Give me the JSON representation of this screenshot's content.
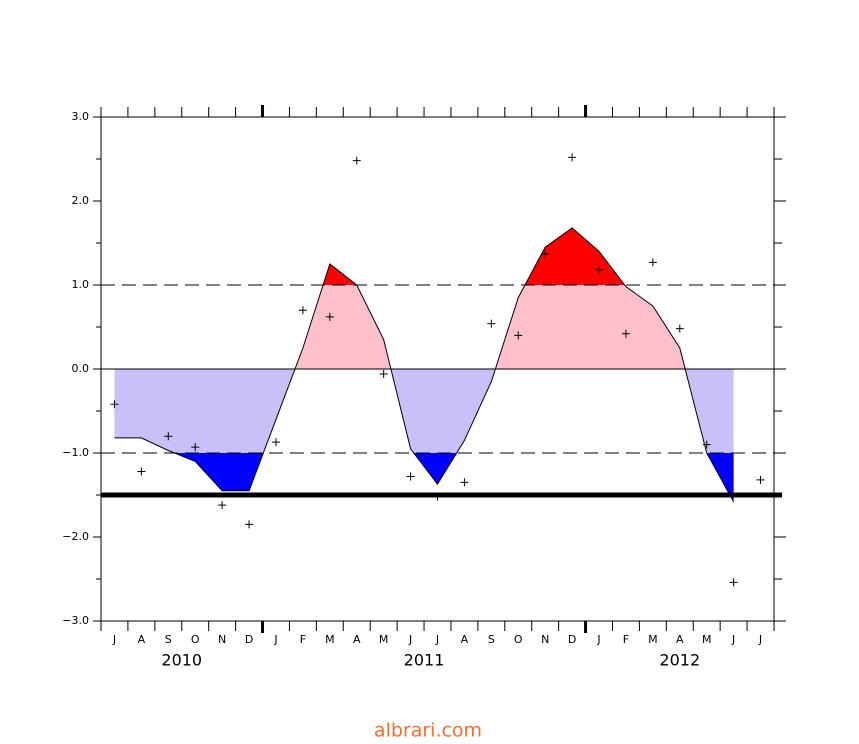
{
  "chart_data": {
    "type": "line",
    "categories": [
      "J",
      "A",
      "S",
      "O",
      "N",
      "D",
      "J",
      "F",
      "M",
      "A",
      "M",
      "J",
      "J",
      "A",
      "S",
      "O",
      "N",
      "D",
      "J",
      "F",
      "M",
      "A",
      "M",
      "J",
      "J"
    ],
    "years": [
      "2010",
      "2011",
      "2012"
    ],
    "series": [
      {
        "kind": "area-line",
        "color": "#000000",
        "values": [
          -0.82,
          -0.82,
          -0.97,
          -1.1,
          -1.45,
          -1.45,
          -0.6,
          0.25,
          1.25,
          1.0,
          0.35,
          -0.95,
          -1.37,
          -0.85,
          -0.15,
          0.85,
          1.45,
          1.68,
          1.4,
          0.98,
          0.75,
          0.25,
          -1.0,
          -1.58,
          null
        ]
      },
      {
        "kind": "cross",
        "color": "#000000",
        "values": [
          -0.42,
          -1.22,
          -0.8,
          -0.93,
          -1.62,
          -1.85,
          -0.87,
          0.7,
          0.62,
          2.48,
          -0.06,
          -1.28,
          -1.52,
          -1.35,
          0.54,
          0.4,
          1.37,
          2.52,
          1.18,
          0.42,
          1.27,
          0.48,
          -0.9,
          -2.54,
          -1.32
        ]
      }
    ],
    "fill_colors": {
      "strong_positive": "#ff0000",
      "positive": "#ffc0cb",
      "negative": "#c8c0f8",
      "strong_negative": "#0000ff"
    },
    "thresholds": [
      1,
      -1
    ],
    "reference_lines": [
      {
        "value": 1,
        "style": "dashed"
      },
      {
        "value": 0,
        "style": "solid"
      },
      {
        "value": -1,
        "style": "dashed"
      },
      {
        "value": -1.5,
        "style": "thick"
      }
    ],
    "ylim": [
      -3,
      3
    ],
    "yticks": [
      {
        "value": -3,
        "label": "−3.0"
      },
      {
        "value": -2,
        "label": "−2.0"
      },
      {
        "value": -1,
        "label": "−1.0"
      },
      {
        "value": 0,
        "label": "0.0"
      },
      {
        "value": 1,
        "label": "1.0"
      },
      {
        "value": 2,
        "label": "2.0"
      },
      {
        "value": 3,
        "label": "3.0"
      }
    ],
    "yminorticks": [
      -2.5,
      -1.5,
      -0.5,
      0.5,
      1.5,
      2.5
    ],
    "watermark": "albrari.com"
  }
}
